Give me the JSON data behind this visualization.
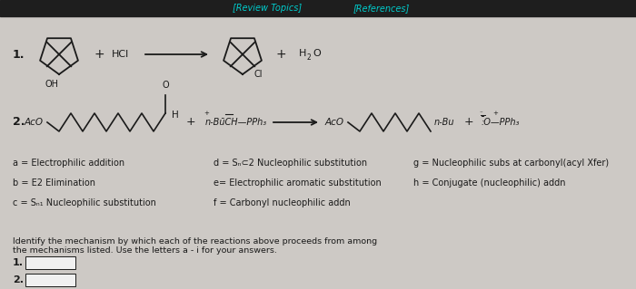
{
  "background_color": "#cdc9c5",
  "top_bar_color": "#1e1e1e",
  "review_topics_text": "[Review Topics]",
  "references_text": "[References]",
  "header_text_color": "#00cccc",
  "mechanisms_col1": [
    "a = Electrophilic addition",
    "b = E2 Elimination",
    "c = Sₙ₁ Nucleophilic substitution"
  ],
  "mechanisms_col2": [
    "d = Sₙ⊂2 Nucleophilic substitution",
    "e= Electrophilic aromatic substitution",
    "f = Carbonyl nucleophilic addn"
  ],
  "mechanisms_col3": [
    "g = Nucleophilic subs at carbonyl(acyl Xfer)",
    "h = Conjugate (nucleophilic) addn"
  ],
  "identify_text": "Identify the mechanism by which each of the reactions above proceeds from among the mechanisms listed. Use the letters a - i for your answers.",
  "text_color": "#1a1a1a",
  "box_color": "#f0f0f0",
  "line_color": "#1a1a1a",
  "figwidth": 7.0,
  "figheight": 3.19,
  "dpi": 100
}
